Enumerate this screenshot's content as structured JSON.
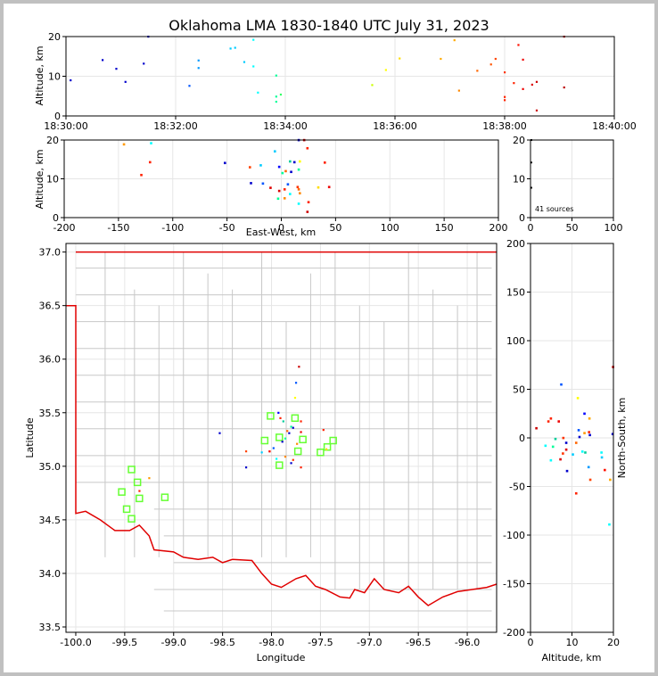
{
  "title": "Oklahoma LMA 1830-1840 UTC July 31, 2023",
  "colors": {
    "frame": "#c0c0c0",
    "grid": "#e6e6e6",
    "county": "#c8c8c8",
    "state": "#e00000",
    "marker": "#66ff33"
  },
  "chart_data": [
    {
      "type": "scatter",
      "panel": "altitude-vs-time",
      "ylabel": "Altitude, km",
      "ylim": [
        0,
        20
      ],
      "yticks": [
        "0",
        "10",
        "20"
      ],
      "xticks": [
        "18:30:00",
        "18:32:00",
        "18:34:00",
        "18:36:00",
        "18:38:00",
        "18:40:00"
      ],
      "points": [
        {
          "t": "18:30:05",
          "alt": 9.0,
          "c": "#0000cc"
        },
        {
          "t": "18:30:40",
          "alt": 14.1,
          "c": "#0000cc"
        },
        {
          "t": "18:30:55",
          "alt": 11.9,
          "c": "#0000cc"
        },
        {
          "t": "18:31:05",
          "alt": 8.6,
          "c": "#0000cc"
        },
        {
          "t": "18:31:25",
          "alt": 13.2,
          "c": "#0000cc"
        },
        {
          "t": "18:31:30",
          "alt": 20.0,
          "c": "#0000cc"
        },
        {
          "t": "18:32:15",
          "alt": 7.6,
          "c": "#0055ff"
        },
        {
          "t": "18:32:25",
          "alt": 14.0,
          "c": "#0099ff"
        },
        {
          "t": "18:32:25",
          "alt": 12.1,
          "c": "#0099ff"
        },
        {
          "t": "18:33:00",
          "alt": 17.0,
          "c": "#00ccff"
        },
        {
          "t": "18:33:05",
          "alt": 17.2,
          "c": "#00ccff"
        },
        {
          "t": "18:33:15",
          "alt": 13.6,
          "c": "#00ccff"
        },
        {
          "t": "18:33:25",
          "alt": 19.2,
          "c": "#00ffff"
        },
        {
          "t": "18:33:25",
          "alt": 12.5,
          "c": "#00ffff"
        },
        {
          "t": "18:33:30",
          "alt": 5.9,
          "c": "#00ffff"
        },
        {
          "t": "18:33:50",
          "alt": 10.2,
          "c": "#00ff99"
        },
        {
          "t": "18:33:50",
          "alt": 4.9,
          "c": "#00ff99"
        },
        {
          "t": "18:33:50",
          "alt": 3.6,
          "c": "#00ff99"
        },
        {
          "t": "18:33:55",
          "alt": 5.4,
          "c": "#33ff66"
        },
        {
          "t": "18:35:35",
          "alt": 7.8,
          "c": "#ccff00"
        },
        {
          "t": "18:35:50",
          "alt": 11.6,
          "c": "#ffff00"
        },
        {
          "t": "18:36:05",
          "alt": 14.5,
          "c": "#ffdd00"
        },
        {
          "t": "18:36:50",
          "alt": 14.4,
          "c": "#ffaa00"
        },
        {
          "t": "18:37:05",
          "alt": 19.1,
          "c": "#ffaa00"
        },
        {
          "t": "18:37:10",
          "alt": 6.4,
          "c": "#ff8800"
        },
        {
          "t": "18:37:30",
          "alt": 11.4,
          "c": "#ff6600"
        },
        {
          "t": "18:37:45",
          "alt": 13.0,
          "c": "#ff5500"
        },
        {
          "t": "18:37:50",
          "alt": 14.4,
          "c": "#ff4400"
        },
        {
          "t": "18:38:00",
          "alt": 11.0,
          "c": "#ff3300"
        },
        {
          "t": "18:38:00",
          "alt": 4.8,
          "c": "#ff2200"
        },
        {
          "t": "18:38:00",
          "alt": 4.0,
          "c": "#ff2200"
        },
        {
          "t": "18:38:10",
          "alt": 8.3,
          "c": "#ff2200"
        },
        {
          "t": "18:38:15",
          "alt": 17.9,
          "c": "#ff1100"
        },
        {
          "t": "18:38:20",
          "alt": 6.8,
          "c": "#ee0000"
        },
        {
          "t": "18:38:20",
          "alt": 14.2,
          "c": "#ee0000"
        },
        {
          "t": "18:38:30",
          "alt": 7.9,
          "c": "#dd0000"
        },
        {
          "t": "18:38:35",
          "alt": 8.6,
          "c": "#cc0000"
        },
        {
          "t": "18:38:35",
          "alt": 1.4,
          "c": "#cc0000"
        },
        {
          "t": "18:39:05",
          "alt": 20.0,
          "c": "#bb0000"
        },
        {
          "t": "18:39:05",
          "alt": 7.2,
          "c": "#bb0000"
        }
      ]
    },
    {
      "type": "scatter",
      "panel": "altitude-vs-east-west",
      "xlabel": "East-West, km",
      "ylabel": "Altitude, km",
      "xlim": [
        -200,
        200
      ],
      "ylim": [
        0,
        20
      ],
      "xticks": [
        "-200",
        "-150",
        "-100",
        "-50",
        "0",
        "50",
        "100",
        "150",
        "200"
      ],
      "yticks": [
        "0",
        "10",
        "20"
      ],
      "points": [
        {
          "x": -145,
          "alt": 18.9,
          "c": "#ff9900"
        },
        {
          "x": -120,
          "alt": 19.2,
          "c": "#00ffff"
        },
        {
          "x": -121,
          "alt": 14.3,
          "c": "#ff2200"
        },
        {
          "x": -129,
          "alt": 11.0,
          "c": "#ff2200"
        },
        {
          "x": -52,
          "alt": 14.1,
          "c": "#0000cc"
        },
        {
          "x": -29,
          "alt": 13.0,
          "c": "#ff4400"
        },
        {
          "x": -19,
          "alt": 13.5,
          "c": "#00ccff"
        },
        {
          "x": -28,
          "alt": 8.9,
          "c": "#0000cc"
        },
        {
          "x": -17,
          "alt": 8.8,
          "c": "#0055ff"
        },
        {
          "x": -10,
          "alt": 7.7,
          "c": "#dd0000"
        },
        {
          "x": -6,
          "alt": 17.1,
          "c": "#00ccff"
        },
        {
          "x": -2,
          "alt": 13.1,
          "c": "#0000ff"
        },
        {
          "x": 1,
          "alt": 11.5,
          "c": "#00ff99"
        },
        {
          "x": 4,
          "alt": 12.0,
          "c": "#ff6600"
        },
        {
          "x": 8,
          "alt": 14.5,
          "c": "#00cc99"
        },
        {
          "x": 12,
          "alt": 14.3,
          "c": "#0000cc"
        },
        {
          "x": 9,
          "alt": 11.8,
          "c": "#0000cc"
        },
        {
          "x": 16,
          "alt": 12.4,
          "c": "#00ff99"
        },
        {
          "x": 17,
          "alt": 14.5,
          "c": "#ffff00"
        },
        {
          "x": 16,
          "alt": 20.0,
          "c": "#0000cc"
        },
        {
          "x": 21,
          "alt": 20.0,
          "c": "#cc0000"
        },
        {
          "x": 24,
          "alt": 17.9,
          "c": "#ff2200"
        },
        {
          "x": 40,
          "alt": 14.2,
          "c": "#ff2200"
        },
        {
          "x": 6,
          "alt": 8.6,
          "c": "#0055ff"
        },
        {
          "x": 3,
          "alt": 7.3,
          "c": "#ff2200"
        },
        {
          "x": -2,
          "alt": 6.9,
          "c": "#dd0000"
        },
        {
          "x": 8,
          "alt": 6.1,
          "c": "#00ffff"
        },
        {
          "x": 15,
          "alt": 7.9,
          "c": "#ff3300"
        },
        {
          "x": 16,
          "alt": 7.3,
          "c": "#ff6600"
        },
        {
          "x": 17,
          "alt": 6.3,
          "c": "#ff8800"
        },
        {
          "x": 34,
          "alt": 7.8,
          "c": "#ffdd00"
        },
        {
          "x": 44,
          "alt": 7.9,
          "c": "#ee0000"
        },
        {
          "x": -3,
          "alt": 4.9,
          "c": "#00ff99"
        },
        {
          "x": 3,
          "alt": 5.0,
          "c": "#ff8800"
        },
        {
          "x": 16,
          "alt": 3.6,
          "c": "#00ffff"
        },
        {
          "x": 25,
          "alt": 4.0,
          "c": "#ff2200"
        },
        {
          "x": 24,
          "alt": 1.5,
          "c": "#cc0000"
        }
      ]
    },
    {
      "type": "histogram",
      "panel": "altitude-histogram",
      "xlim": [
        0,
        100
      ],
      "ylim": [
        0,
        20
      ],
      "xticks": [
        "0",
        "50",
        "100"
      ],
      "yticks": [
        "0",
        "10",
        "20"
      ],
      "annotation": "41 sources",
      "points": [
        {
          "count": 1,
          "alt": 14.2
        },
        {
          "count": 1,
          "alt": 7.7
        },
        {
          "count": 1,
          "alt": 20.0
        }
      ]
    },
    {
      "type": "scatter",
      "panel": "plan-view-map",
      "xlabel": "Longitude",
      "ylabel": "Latitude",
      "xlim": [
        -100.1,
        -95.7
      ],
      "ylim": [
        33.45,
        37.08
      ],
      "xticks": [
        "-100.0",
        "-99.5",
        "-99.0",
        "-98.5",
        "-98.0",
        "-97.5",
        "-97.0",
        "-96.5",
        "-96.0"
      ],
      "yticks": [
        "33.5",
        "34.0",
        "34.5",
        "35.0",
        "35.5",
        "36.0",
        "36.5",
        "37.0"
      ],
      "stations": [
        {
          "lon": -99.43,
          "lat": 34.97
        },
        {
          "lon": -99.37,
          "lat": 34.85
        },
        {
          "lon": -99.53,
          "lat": 34.76
        },
        {
          "lon": -99.35,
          "lat": 34.7
        },
        {
          "lon": -99.09,
          "lat": 34.71
        },
        {
          "lon": -99.48,
          "lat": 34.6
        },
        {
          "lon": -99.43,
          "lat": 34.51
        },
        {
          "lon": -98.01,
          "lat": 35.47
        },
        {
          "lon": -97.76,
          "lat": 35.45
        },
        {
          "lon": -98.07,
          "lat": 35.24
        },
        {
          "lon": -97.92,
          "lat": 35.27
        },
        {
          "lon": -97.68,
          "lat": 35.25
        },
        {
          "lon": -97.37,
          "lat": 35.24
        },
        {
          "lon": -97.43,
          "lat": 35.18
        },
        {
          "lon": -97.73,
          "lat": 35.14
        },
        {
          "lon": -97.5,
          "lat": 35.13
        },
        {
          "lon": -97.92,
          "lat": 35.01
        }
      ],
      "points": [
        {
          "lon": -99.25,
          "lat": 34.89,
          "c": "#ff9900"
        },
        {
          "lon": -99.35,
          "lat": 34.77,
          "c": "#ff2200"
        },
        {
          "lon": -98.53,
          "lat": 35.31,
          "c": "#0000cc"
        },
        {
          "lon": -98.26,
          "lat": 35.14,
          "c": "#ff4400"
        },
        {
          "lon": -98.26,
          "lat": 34.99,
          "c": "#0000cc"
        },
        {
          "lon": -98.1,
          "lat": 35.13,
          "c": "#00ccff"
        },
        {
          "lon": -98.02,
          "lat": 35.14,
          "c": "#dd0000"
        },
        {
          "lon": -97.98,
          "lat": 35.17,
          "c": "#0055ff"
        },
        {
          "lon": -97.93,
          "lat": 35.5,
          "c": "#0000ff"
        },
        {
          "lon": -97.91,
          "lat": 35.45,
          "c": "#ff2200"
        },
        {
          "lon": -97.88,
          "lat": 35.42,
          "c": "#00cc99"
        },
        {
          "lon": -97.95,
          "lat": 35.07,
          "c": "#00ffff"
        },
        {
          "lon": -97.89,
          "lat": 35.23,
          "c": "#0000cc"
        },
        {
          "lon": -97.86,
          "lat": 35.26,
          "c": "#00ff99"
        },
        {
          "lon": -97.84,
          "lat": 35.33,
          "c": "#ff6600"
        },
        {
          "lon": -97.82,
          "lat": 35.31,
          "c": "#0000cc"
        },
        {
          "lon": -97.8,
          "lat": 35.37,
          "c": "#00ff99"
        },
        {
          "lon": -97.78,
          "lat": 35.36,
          "c": "#0000cc"
        },
        {
          "lon": -97.76,
          "lat": 35.64,
          "c": "#ffff00"
        },
        {
          "lon": -97.75,
          "lat": 35.78,
          "c": "#0055ff"
        },
        {
          "lon": -97.72,
          "lat": 35.93,
          "c": "#cc0000"
        },
        {
          "lon": -97.7,
          "lat": 35.42,
          "c": "#ff2200"
        },
        {
          "lon": -97.7,
          "lat": 35.32,
          "c": "#ee0000"
        },
        {
          "lon": -97.74,
          "lat": 35.21,
          "c": "#ff8800"
        },
        {
          "lon": -97.78,
          "lat": 35.06,
          "c": "#ff3300"
        },
        {
          "lon": -97.8,
          "lat": 35.03,
          "c": "#0000cc"
        },
        {
          "lon": -97.7,
          "lat": 34.99,
          "c": "#ff2200"
        },
        {
          "lon": -97.47,
          "lat": 35.34,
          "c": "#ff2200"
        },
        {
          "lon": -97.44,
          "lat": 35.16,
          "c": "#ffdd00"
        },
        {
          "lon": -97.86,
          "lat": 35.09,
          "c": "#ff8800"
        },
        {
          "lon": -98.02,
          "lat": 35.14,
          "c": "#ff1100"
        }
      ]
    },
    {
      "type": "scatter",
      "panel": "north-south-vs-altitude",
      "xlabel": "Altitude, km",
      "ylabel": "North-South, km",
      "xlim": [
        0,
        20
      ],
      "ylim": [
        -200,
        200
      ],
      "xticks": [
        "0",
        "10",
        "20"
      ],
      "yticks": [
        "-200",
        "-150",
        "-100",
        "-50",
        "0",
        "50",
        "100",
        "150",
        "200"
      ],
      "points": [
        {
          "alt": 19.9,
          "y": 73,
          "c": "#cc0000"
        },
        {
          "alt": 7.4,
          "y": 55,
          "c": "#0055ff"
        },
        {
          "alt": 11.4,
          "y": 41,
          "c": "#ffff00"
        },
        {
          "alt": 13.0,
          "y": 25,
          "c": "#0000ff"
        },
        {
          "alt": 14.2,
          "y": 20,
          "c": "#ffaa00"
        },
        {
          "alt": 4.9,
          "y": 20,
          "c": "#ff2200"
        },
        {
          "alt": 4.3,
          "y": 17,
          "c": "#ff2200"
        },
        {
          "alt": 6.8,
          "y": 17,
          "c": "#ee0000"
        },
        {
          "alt": 1.4,
          "y": 10,
          "c": "#cc0000"
        },
        {
          "alt": 11.6,
          "y": 8,
          "c": "#0055ff"
        },
        {
          "alt": 14.1,
          "y": 6,
          "c": "#ff2200"
        },
        {
          "alt": 13.0,
          "y": 5,
          "c": "#ff9900"
        },
        {
          "alt": 14.3,
          "y": 3,
          "c": "#0000cc"
        },
        {
          "alt": 19.8,
          "y": 4,
          "c": "#0000cc"
        },
        {
          "alt": 11.8,
          "y": 1,
          "c": "#0000cc"
        },
        {
          "alt": 6.0,
          "y": -1,
          "c": "#00cc99"
        },
        {
          "alt": 7.9,
          "y": 0,
          "c": "#ff3300"
        },
        {
          "alt": 8.6,
          "y": -5,
          "c": "#0000cc"
        },
        {
          "alt": 11.0,
          "y": -5,
          "c": "#ff6600"
        },
        {
          "alt": 3.6,
          "y": -8,
          "c": "#00ffff"
        },
        {
          "alt": 5.4,
          "y": -9,
          "c": "#00ff99"
        },
        {
          "alt": 8.6,
          "y": -12,
          "c": "#dd0000"
        },
        {
          "alt": 7.8,
          "y": -16,
          "c": "#ff3300"
        },
        {
          "alt": 12.5,
          "y": -14,
          "c": "#00ffff"
        },
        {
          "alt": 13.2,
          "y": -15,
          "c": "#00cc99"
        },
        {
          "alt": 10.2,
          "y": -17,
          "c": "#00ccff"
        },
        {
          "alt": 17.1,
          "y": -15,
          "c": "#00ffff"
        },
        {
          "alt": 17.2,
          "y": -20,
          "c": "#00ccff"
        },
        {
          "alt": 4.9,
          "y": -23,
          "c": "#00ffff"
        },
        {
          "alt": 7.2,
          "y": -22,
          "c": "#dd0000"
        },
        {
          "alt": 14.0,
          "y": -30,
          "c": "#0099ff"
        },
        {
          "alt": 17.9,
          "y": -33,
          "c": "#ff1100"
        },
        {
          "alt": 8.8,
          "y": -34,
          "c": "#0000cc"
        },
        {
          "alt": 19.2,
          "y": -43,
          "c": "#ffaa00"
        },
        {
          "alt": 14.4,
          "y": -43,
          "c": "#ff4400"
        },
        {
          "alt": 11.0,
          "y": -57,
          "c": "#ff2200"
        },
        {
          "alt": 19.0,
          "y": -89,
          "c": "#00ffff"
        }
      ]
    }
  ]
}
